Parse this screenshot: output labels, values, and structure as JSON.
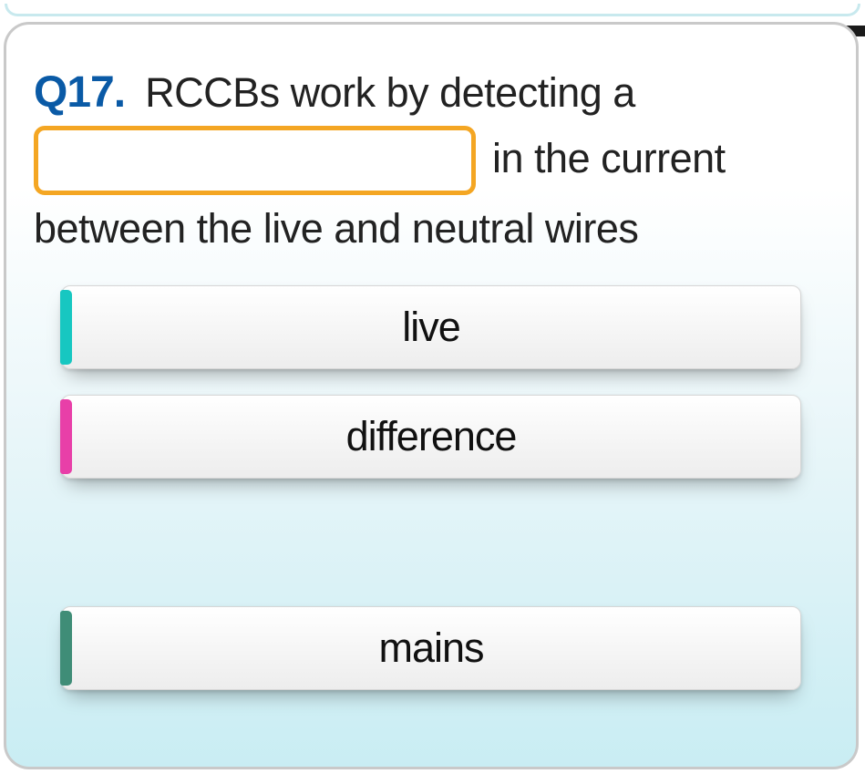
{
  "question": {
    "number": "Q17.",
    "text_before_blank": "RCCBs work by detecting a",
    "text_after_blank_1": "in the current",
    "text_line_3": "between the live and neutral wires"
  },
  "blank": {
    "border_color": "#f4a623",
    "background_color": "#ffffff"
  },
  "answers": [
    {
      "label": "live",
      "stripe_color": "#17c7c1"
    },
    {
      "label": "difference",
      "stripe_color": "#e83fa8"
    },
    {
      "label": "mains",
      "stripe_color": "#3f8d77"
    }
  ],
  "styling": {
    "qnum_color": "#0a5aa6",
    "card_border_color": "#c9c9c9",
    "card_bg_gradient": [
      "#ffffff",
      "#e9f6f9",
      "#c9edf3"
    ],
    "top_sliver_border": "#c8e9ee",
    "answer_bg_gradient": [
      "#ffffff",
      "#f7f7f7",
      "#ededed"
    ],
    "body_font_size": 45,
    "qnum_font_size": 48
  }
}
